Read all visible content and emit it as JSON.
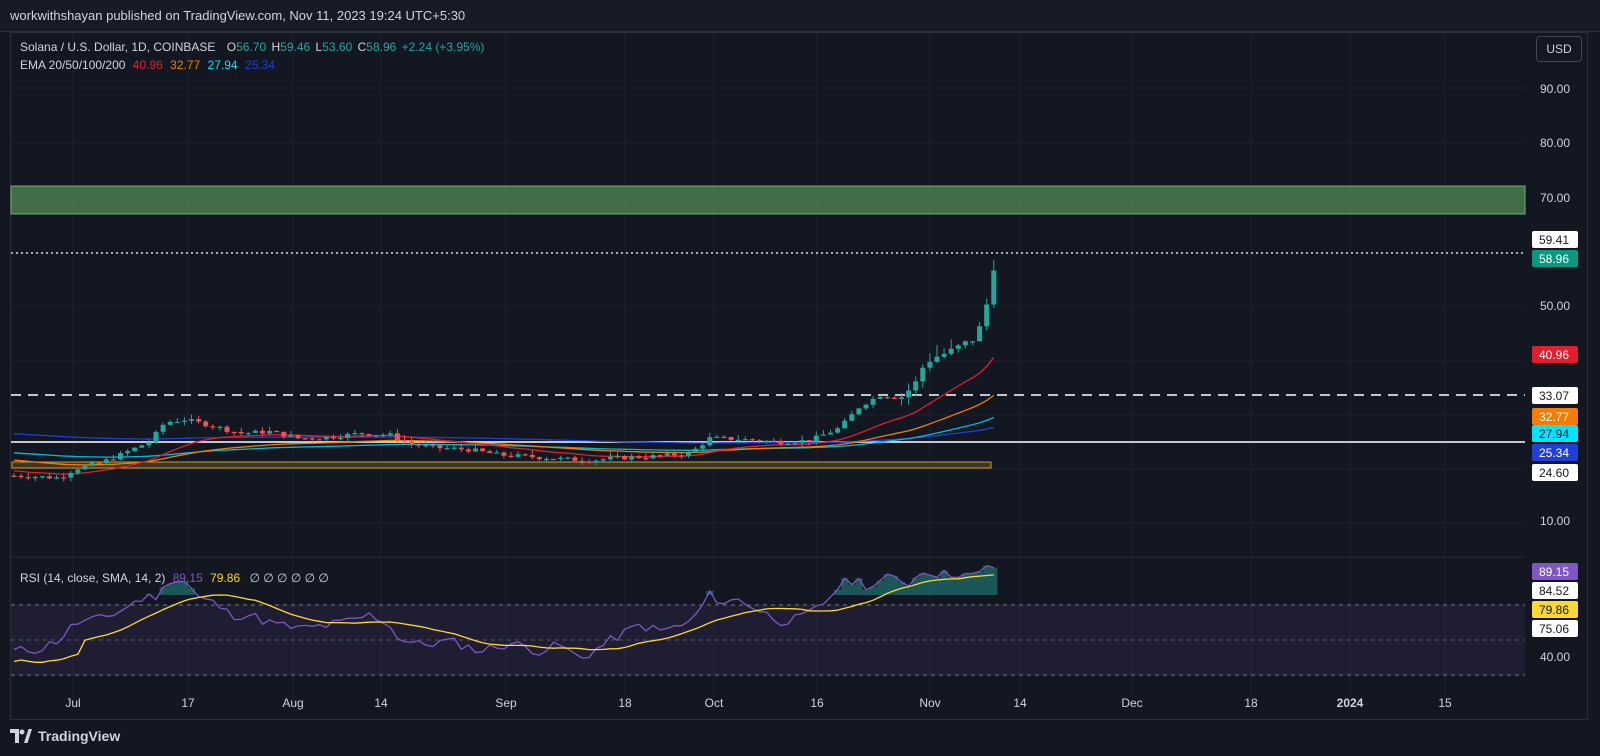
{
  "header": {
    "publisher_text": "workwithshayan published on TradingView.com, Nov 11, 2023 19:24 UTC+5:30"
  },
  "legend": {
    "symbol": "Solana / U.S. Dollar, 1D, COINBASE",
    "o_label": "O",
    "o_value": "56.70",
    "h_label": "H",
    "h_value": "59.46",
    "l_label": "L",
    "l_value": "53.60",
    "c_label": "C",
    "c_value": "58.96",
    "change": "+2.24 (+3.95%)",
    "ema_label": "EMA 20/50/100/200",
    "ema20": "40.96",
    "ema50": "32.77",
    "ema100": "27.94",
    "ema200": "25.34",
    "rsi_label": "RSI (14, close, SMA, 14, 2)",
    "rsi_value": "89.15",
    "rsi_sma": "79.86",
    "rsi_extra": "∅ ∅ ∅ ∅ ∅ ∅"
  },
  "currency_button": "USD",
  "price_axis": {
    "ticks": [
      "90.00",
      "80.00",
      "70.00",
      "50.00",
      "10.00"
    ],
    "tag_5941": "59.41",
    "tag_5896": "58.96",
    "tag_4096": "40.96",
    "tag_3307": "33.07",
    "tag_3277": "32.77",
    "tag_2794": "27.94",
    "tag_2534": "25.34",
    "tag_2460": "24.60"
  },
  "rsi_axis": {
    "tag_8915": "89.15",
    "tag_8452": "84.52",
    "tag_7986": "79.86",
    "tag_7506": "75.06",
    "tick_40": "40.00"
  },
  "time_axis": [
    "Jul",
    "17",
    "Aug",
    "14",
    "Sep",
    "18",
    "Oct",
    "16",
    "Nov",
    "14",
    "Dec",
    "18",
    "2024",
    "15"
  ],
  "footer": {
    "brand": "TradingView"
  },
  "colors": {
    "background": "#131722",
    "up": "#26a69a",
    "down": "#ef5350",
    "ema20": "#e01e2e",
    "ema50": "#f57c00",
    "ema100": "#00bcd4",
    "ema200": "#1e3fd8",
    "rsi": "#7e57c2",
    "rsi_sma": "#fdd835",
    "zone": "#4c7c4f"
  }
}
